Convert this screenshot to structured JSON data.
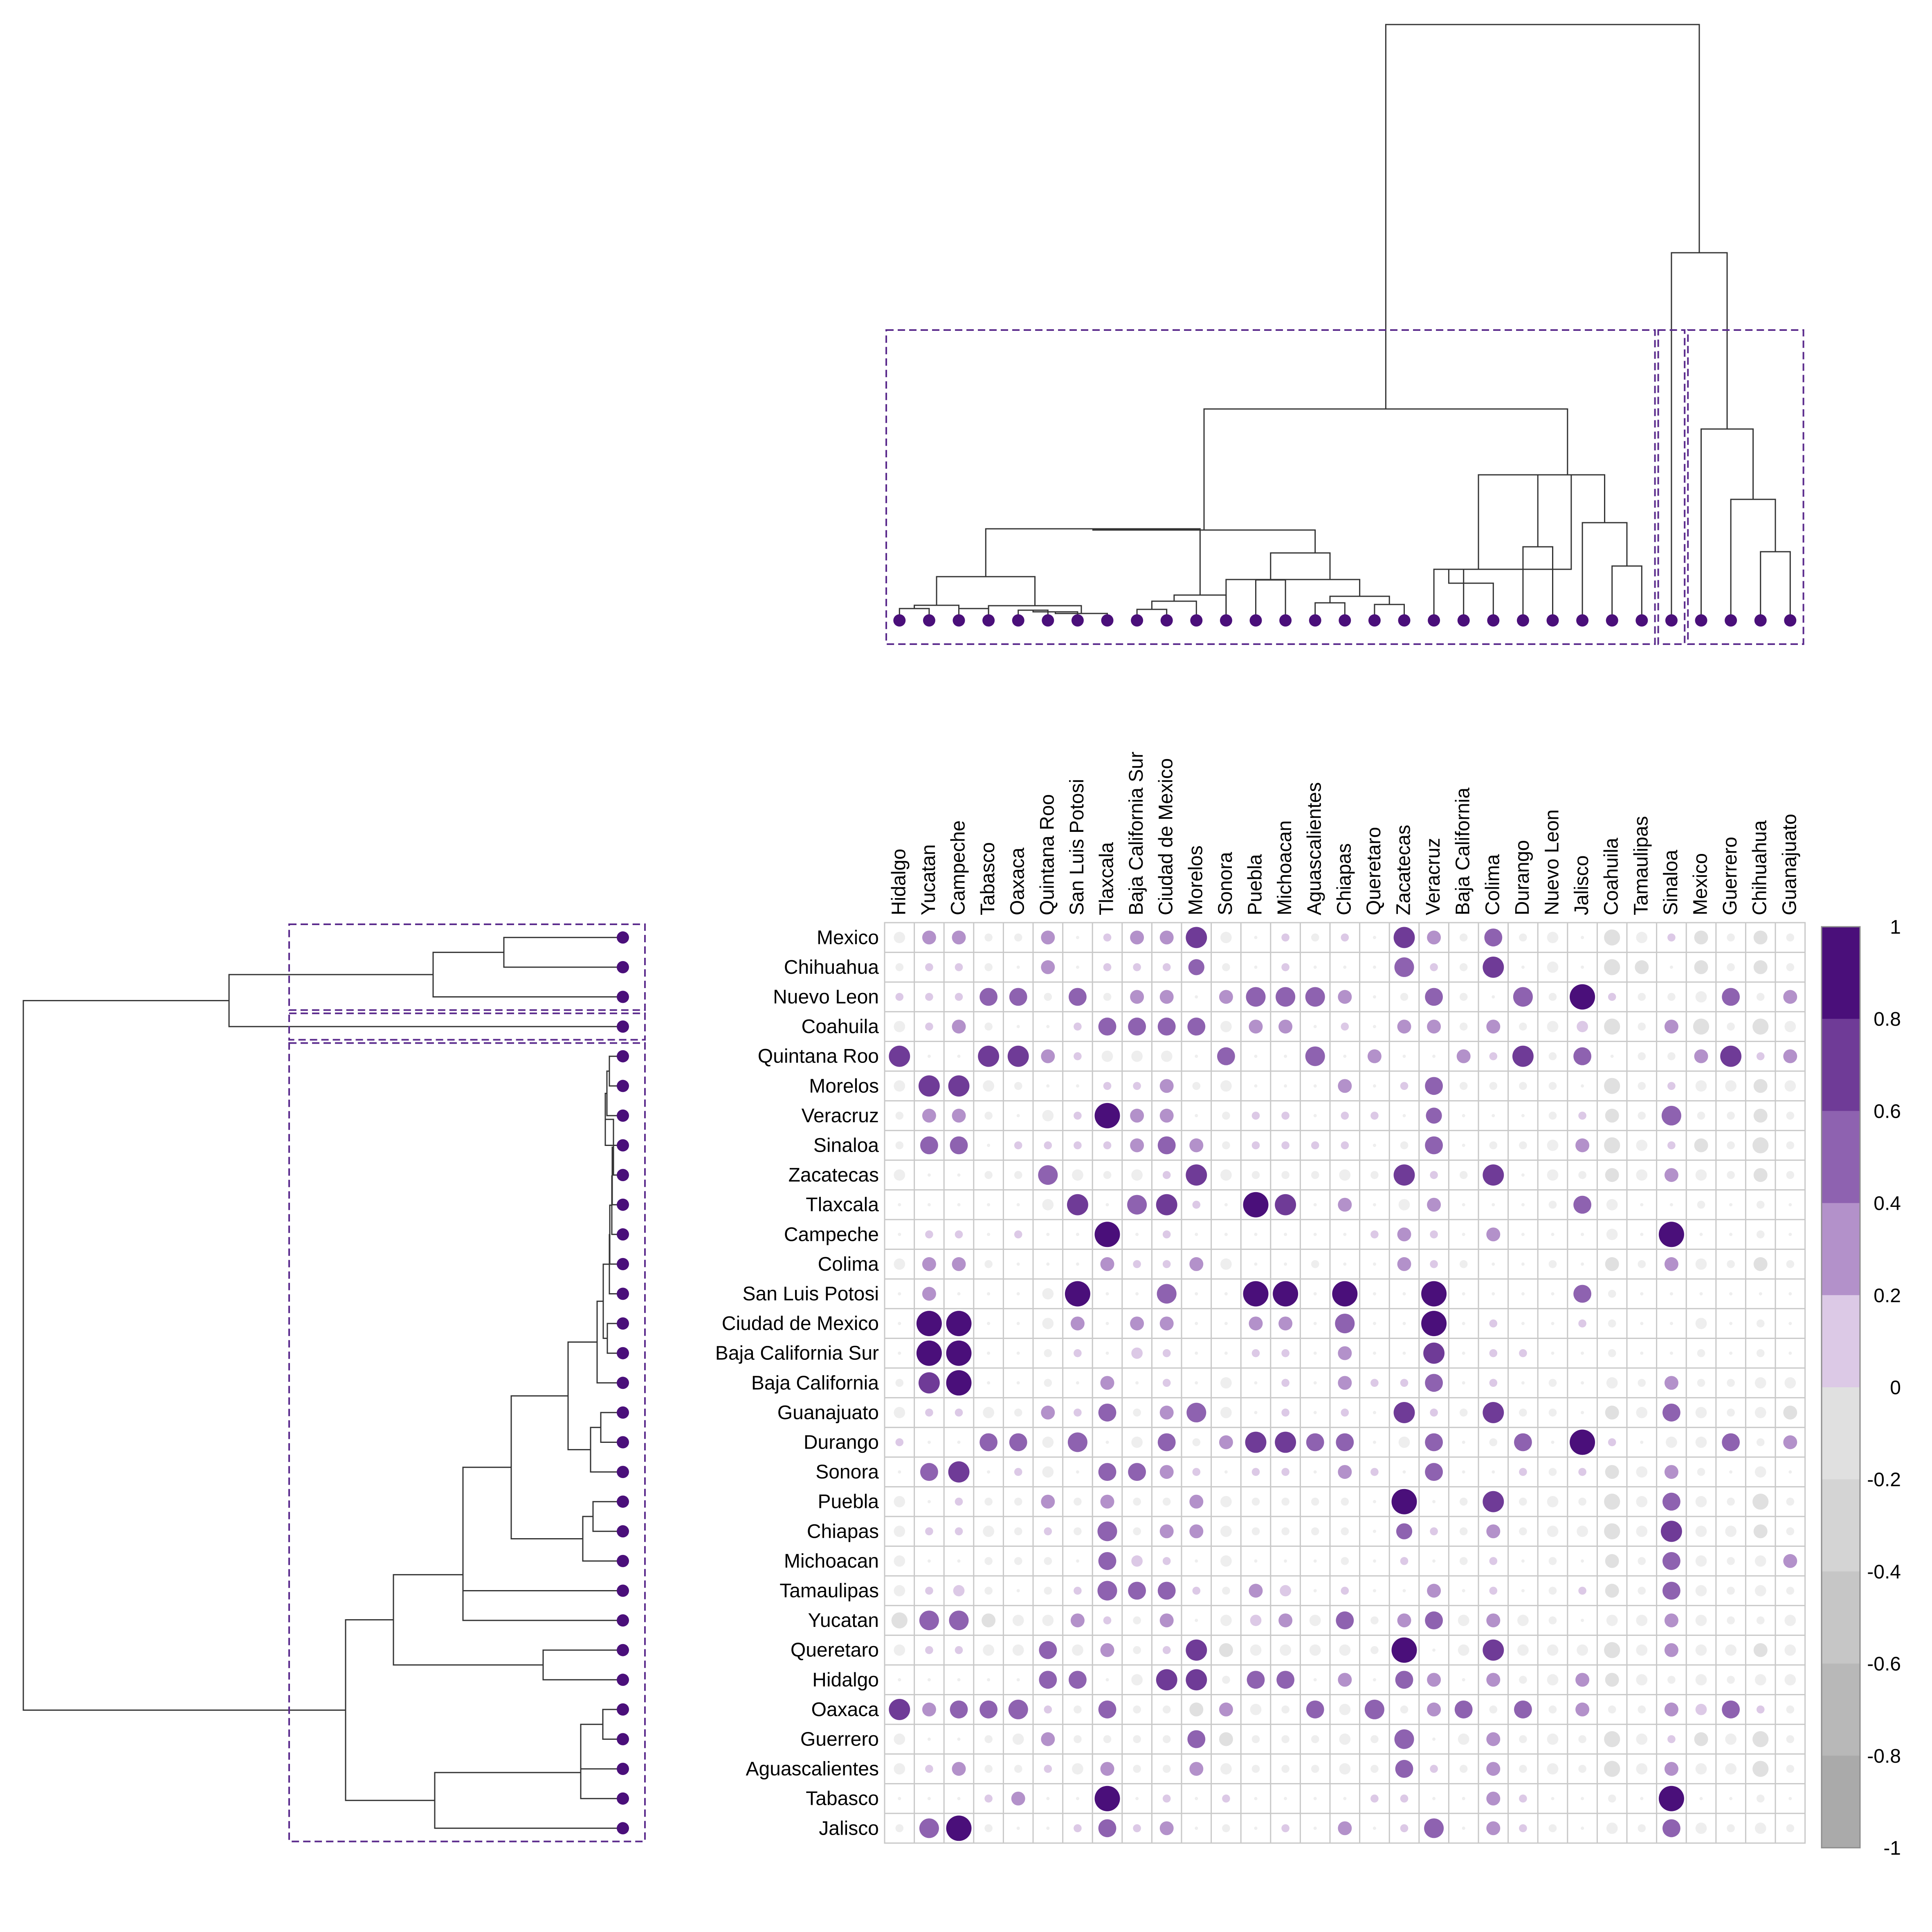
{
  "colors": {
    "dendrogram_line": "#333333",
    "cluster_box": "#5a2a8c",
    "leaf_dot": "#4a0f7a",
    "grid": "#c8c8c8",
    "border": "#8c8c8c"
  },
  "chart_data": {
    "type": "heatmap",
    "subtype": "bubble correlation matrix with dendrograms",
    "columns": [
      "Hidalgo",
      "Yucatan",
      "Campeche",
      "Tabasco",
      "Oaxaca",
      "Quintana Roo",
      "San Luis Potosi",
      "Tlaxcala",
      "Baja California Sur",
      "Ciudad de Mexico",
      "Morelos",
      "Sonora",
      "Puebla",
      "Michoacan",
      "Aguascalientes",
      "Chiapas",
      "Queretaro",
      "Zacatecas",
      "Veracruz",
      "Baja California",
      "Colima",
      "Durango",
      "Nuevo Leon",
      "Jalisco",
      "Coahuila",
      "Tamaulipas",
      "Sinaloa",
      "Mexico",
      "Guerrero",
      "Chihuahua",
      "Guanajuato"
    ],
    "rows": [
      "Mexico",
      "Chihuahua",
      "Nuevo Leon",
      "Coahuila",
      "Quintana Roo",
      "Morelos",
      "Veracruz",
      "Sinaloa",
      "Zacatecas",
      "Tlaxcala",
      "Campeche",
      "Colima",
      "San Luis Potosi",
      "Ciudad de Mexico",
      "Baja California Sur",
      "Baja California",
      "Guanajuato",
      "Durango",
      "Sonora",
      "Puebla",
      "Chiapas",
      "Michoacan",
      "Tamaulipas",
      "Yucatan",
      "Queretaro",
      "Hidalgo",
      "Oaxaca",
      "Guerrero",
      "Aguascalientes",
      "Tabasco",
      "Jalisco"
    ],
    "values": [
      [
        -0.2,
        0.3,
        0.3,
        -0.1,
        -0.1,
        0.3,
        0,
        0.1,
        0.3,
        0.3,
        0.7,
        -0.2,
        0,
        0.1,
        -0.1,
        0.1,
        0,
        0.7,
        0.3,
        -0.1,
        0.5,
        -0.1,
        -0.2,
        0,
        -0.4,
        -0.2,
        0.1,
        -0.3,
        -0.1,
        -0.3,
        -0.1
      ],
      [
        -0.1,
        0.1,
        0.1,
        -0.1,
        0,
        0.3,
        0,
        0.1,
        0.1,
        0.1,
        0.4,
        -0.1,
        0,
        0.1,
        0,
        0,
        0,
        0.6,
        0.1,
        -0.1,
        0.7,
        0,
        -0.2,
        0,
        -0.4,
        -0.3,
        0,
        -0.3,
        -0.1,
        -0.3,
        -0.1
      ],
      [
        0.1,
        0.1,
        0.1,
        0.5,
        0.5,
        -0.1,
        0.5,
        -0.1,
        0.3,
        0.3,
        0,
        0.3,
        0.6,
        0.6,
        0.6,
        0.3,
        0,
        -0.1,
        0.5,
        -0.1,
        0,
        0.6,
        -0.1,
        1,
        0.1,
        -0.1,
        -0.1,
        -0.2,
        0.5,
        -0.1,
        0.3
      ],
      [
        -0.2,
        0.1,
        0.3,
        -0.1,
        0,
        0,
        0.1,
        0.5,
        0.5,
        0.5,
        0.5,
        -0.2,
        0.3,
        0.3,
        0,
        0.1,
        0,
        0.3,
        0.3,
        -0.1,
        0.3,
        -0.1,
        -0.2,
        0.2,
        -0.4,
        -0.1,
        0.3,
        -0.4,
        -0.1,
        -0.4,
        -0.2
      ],
      [
        0.7,
        0,
        0,
        0.7,
        0.7,
        0.3,
        0.1,
        -0.2,
        -0.2,
        -0.2,
        0,
        0.5,
        0,
        0,
        0.6,
        0,
        0.3,
        0,
        0,
        0.3,
        0.1,
        0.7,
        -0.1,
        0.5,
        0,
        -0.1,
        -0.1,
        0.3,
        0.7,
        0.1,
        0.3
      ],
      [
        -0.2,
        0.7,
        0.7,
        -0.2,
        -0.1,
        0,
        0,
        0.1,
        0.1,
        0.3,
        -0.1,
        -0.2,
        0,
        0,
        0,
        0.3,
        0,
        0.1,
        0.5,
        -0.1,
        -0.1,
        -0.1,
        -0.1,
        0,
        -0.4,
        -0.1,
        0.1,
        -0.2,
        -0.2,
        -0.3,
        -0.2
      ],
      [
        -0.1,
        0.3,
        0.3,
        -0.1,
        0,
        -0.2,
        0.1,
        1,
        0.3,
        0.3,
        0,
        -0.1,
        0.1,
        0.1,
        0,
        0.1,
        0.1,
        0,
        0.4,
        0,
        0,
        0,
        -0.1,
        0.1,
        -0.3,
        -0.1,
        0.6,
        -0.1,
        -0.1,
        -0.3,
        -0.1
      ],
      [
        -0.1,
        0.5,
        0.5,
        0,
        0.1,
        0.1,
        0.1,
        0.1,
        0.3,
        0.5,
        0.3,
        -0.1,
        0.1,
        0.1,
        0.1,
        0.1,
        0,
        -0.1,
        0.5,
        0,
        -0.1,
        -0.1,
        -0.2,
        0.3,
        -0.4,
        -0.2,
        0.1,
        -0.3,
        -0.1,
        -0.4,
        -0.1
      ],
      [
        -0.2,
        0,
        0,
        -0.1,
        -0.1,
        0.6,
        -0.2,
        -0.1,
        -0.2,
        0.1,
        0.7,
        -0.2,
        -0.1,
        -0.1,
        -0.1,
        -0.2,
        -0.1,
        0.7,
        0.1,
        -0.1,
        0.7,
        0,
        -0.2,
        -0.1,
        -0.3,
        -0.2,
        0.3,
        -0.2,
        -0.1,
        -0.3,
        -0.1
      ],
      [
        0,
        0,
        0,
        0,
        0,
        -0.2,
        0.7,
        0,
        0.6,
        0.7,
        0.1,
        0,
        1,
        0.7,
        0,
        0.3,
        0,
        -0.2,
        0.3,
        0,
        0,
        0,
        -0.1,
        0.5,
        -0.2,
        0,
        0,
        -0.1,
        0,
        -0.1,
        0
      ],
      [
        0,
        0.1,
        0.1,
        0,
        0.1,
        0,
        0,
        1,
        0,
        0.1,
        0,
        0,
        0,
        0,
        0,
        0,
        0.1,
        0.3,
        0.1,
        0,
        0.3,
        0,
        0,
        0,
        -0.2,
        0,
        1,
        0,
        0,
        -0.1,
        0
      ],
      [
        -0.2,
        0.3,
        0.3,
        -0.1,
        0,
        0,
        0,
        0.3,
        0.1,
        0.1,
        0.3,
        -0.2,
        0,
        0,
        -0.1,
        0,
        0,
        0.3,
        0.1,
        -0.1,
        0,
        0,
        -0.1,
        0,
        -0.3,
        -0.1,
        0.3,
        -0.2,
        -0.1,
        -0.3,
        -0.1
      ],
      [
        0,
        0.3,
        0,
        0,
        0,
        -0.2,
        1,
        0,
        0,
        0.6,
        0,
        0,
        1,
        1,
        0,
        1,
        0,
        0,
        1,
        0,
        0,
        0,
        0,
        0.5,
        -0.1,
        0,
        0,
        0,
        0,
        0,
        0
      ],
      [
        0,
        1,
        1,
        0,
        0,
        -0.2,
        0.3,
        0,
        0.3,
        0.3,
        0,
        0,
        0.3,
        0.3,
        0,
        0.6,
        0,
        0,
        1,
        0,
        0.1,
        0,
        0,
        0.1,
        -0.1,
        0,
        0,
        -0.2,
        0,
        -0.1,
        0
      ],
      [
        0,
        1,
        1,
        0,
        0,
        -0.1,
        0.1,
        0,
        0.2,
        0.1,
        0,
        0,
        0.1,
        0.1,
        0,
        0.3,
        0,
        0,
        0.7,
        0,
        0.1,
        0.1,
        0,
        0,
        -0.1,
        0,
        0,
        -0.1,
        0,
        -0.1,
        0
      ],
      [
        -0.1,
        0.7,
        1,
        0,
        0,
        -0.1,
        0,
        0.3,
        0,
        0.1,
        0,
        -0.2,
        0,
        0.1,
        0,
        0.3,
        0.1,
        0.1,
        0.5,
        0,
        0.1,
        0,
        -0.1,
        0,
        -0.2,
        -0.1,
        0.3,
        -0.1,
        -0.1,
        -0.2,
        -0.2
      ],
      [
        -0.2,
        0.1,
        0.1,
        -0.2,
        -0.1,
        0.3,
        0.1,
        0.5,
        -0.1,
        0.3,
        0.6,
        -0.2,
        0,
        0.1,
        0,
        0.1,
        0,
        0.7,
        0.1,
        -0.1,
        0.7,
        -0.1,
        -0.1,
        0,
        -0.3,
        -0.2,
        0.5,
        -0.2,
        -0.1,
        -0.2,
        -0.3
      ],
      [
        0.1,
        0,
        0,
        0.5,
        0.5,
        -0.2,
        0.6,
        0,
        -0.2,
        0.5,
        -0.1,
        0.3,
        0.7,
        0.7,
        0.5,
        0.5,
        0,
        -0.2,
        0.5,
        0,
        -0.1,
        0.5,
        0,
        1,
        0.1,
        0,
        -0.2,
        -0.2,
        0.5,
        -0.1,
        0.3
      ],
      [
        0,
        0.5,
        0.7,
        0,
        0.1,
        -0.2,
        0,
        0.5,
        0.5,
        0.3,
        0.1,
        0,
        0.1,
        0.1,
        0,
        0.3,
        0.1,
        0,
        0.5,
        0,
        0,
        0.1,
        -0.1,
        0.1,
        -0.3,
        -0.2,
        0.3,
        -0.1,
        0,
        -0.2,
        0
      ],
      [
        -0.2,
        0,
        0.1,
        -0.1,
        -0.1,
        0.3,
        -0.1,
        0.3,
        -0.1,
        -0.1,
        0.3,
        -0.2,
        -0.1,
        -0.1,
        -0.1,
        -0.1,
        0,
        1,
        0,
        -0.1,
        0.7,
        -0.1,
        -0.2,
        -0.1,
        -0.4,
        -0.2,
        0.5,
        -0.2,
        -0.1,
        -0.4,
        -0.1
      ],
      [
        -0.2,
        0.1,
        0.1,
        -0.2,
        -0.1,
        0.1,
        -0.1,
        0.6,
        -0.1,
        0.3,
        0.3,
        -0.2,
        -0.1,
        -0.1,
        -0.1,
        -0.1,
        0,
        0.4,
        0.1,
        -0.1,
        0.3,
        -0.1,
        -0.2,
        -0.2,
        -0.4,
        -0.2,
        0.7,
        -0.2,
        -0.2,
        -0.3,
        -0.1
      ],
      [
        -0.2,
        0,
        0,
        -0.1,
        -0.1,
        -0.1,
        0,
        0.5,
        0.2,
        0.1,
        0,
        -0.2,
        0,
        0,
        0,
        -0.1,
        0,
        0.1,
        0,
        -0.1,
        0.1,
        0,
        -0.1,
        0,
        -0.3,
        -0.1,
        0.5,
        -0.2,
        -0.1,
        -0.2,
        0.3
      ],
      [
        -0.2,
        0.1,
        0.2,
        -0.1,
        0,
        -0.1,
        0.1,
        0.6,
        0.5,
        0.5,
        0.1,
        -0.1,
        0.3,
        0.2,
        0,
        0.1,
        0,
        0,
        0.3,
        0,
        0.1,
        0,
        -0.1,
        0.1,
        -0.3,
        -0.1,
        0.5,
        -0.2,
        -0.1,
        -0.2,
        -0.1
      ],
      [
        -0.4,
        0.6,
        0.6,
        -0.3,
        -0.2,
        -0.2,
        0.3,
        0.1,
        -0.1,
        0.3,
        0,
        -0.2,
        0.2,
        0.3,
        -0.2,
        0.5,
        -0.1,
        0.3,
        0.5,
        -0.2,
        0.3,
        -0.2,
        -0.1,
        0,
        -0.2,
        -0.2,
        0.3,
        -0.2,
        -0.1,
        -0.1,
        -0.2
      ],
      [
        -0.2,
        0.1,
        0.1,
        -0.2,
        -0.2,
        0.5,
        -0.2,
        0.3,
        -0.1,
        0.1,
        0.7,
        -0.3,
        -0.2,
        -0.2,
        -0.2,
        -0.2,
        -0.1,
        1,
        0,
        -0.2,
        0.7,
        -0.2,
        -0.2,
        -0.2,
        -0.4,
        -0.2,
        0.3,
        -0.2,
        -0.2,
        -0.3,
        -0.2
      ],
      [
        0,
        0,
        0,
        0,
        0,
        0.5,
        0.5,
        0,
        -0.2,
        0.7,
        0.7,
        -0.1,
        0.5,
        0.5,
        0,
        0.3,
        0,
        0.5,
        0.3,
        0,
        0.3,
        -0.1,
        -0.2,
        0.3,
        -0.3,
        -0.2,
        -0.1,
        -0.2,
        -0.1,
        -0.2,
        -0.2
      ],
      [
        0.7,
        0.3,
        0.5,
        0.5,
        0.6,
        0.1,
        -0.1,
        0.5,
        -0.1,
        -0.1,
        -0.3,
        0.3,
        -0.2,
        -0.1,
        0.5,
        -0.2,
        0.6,
        -0.1,
        0.3,
        0.5,
        -0.1,
        0.5,
        -0.1,
        0.3,
        -0.1,
        -0.1,
        0.3,
        0.2,
        0.5,
        0.1,
        -0.1
      ],
      [
        -0.2,
        0,
        0,
        -0.1,
        -0.2,
        0.3,
        -0.1,
        -0.1,
        -0.1,
        -0.1,
        0.5,
        -0.3,
        -0.1,
        -0.1,
        -0.1,
        -0.2,
        -0.1,
        0.6,
        0,
        -0.2,
        0.3,
        -0.1,
        -0.2,
        -0.1,
        -0.4,
        -0.2,
        0.1,
        -0.3,
        -0.2,
        -0.4,
        -0.1
      ],
      [
        -0.2,
        0.1,
        0.3,
        -0.1,
        -0.1,
        0.1,
        -0.2,
        0.3,
        -0.1,
        -0.1,
        0.3,
        -0.2,
        -0.1,
        -0.1,
        -0.1,
        -0.2,
        -0.1,
        0.5,
        0.1,
        -0.1,
        0.3,
        -0.1,
        -0.2,
        -0.1,
        -0.4,
        -0.2,
        0.3,
        -0.2,
        -0.2,
        -0.4,
        -0.1
      ],
      [
        0,
        0,
        0,
        0.1,
        0.3,
        0,
        0,
        1,
        0,
        0.1,
        0,
        0.1,
        0,
        0,
        0,
        0,
        0.1,
        0.1,
        0,
        0,
        0.3,
        0.1,
        0,
        0,
        -0.1,
        0,
        1,
        0,
        0,
        -0.1,
        0
      ],
      [
        -0.1,
        0.6,
        1,
        -0.1,
        0,
        0,
        0.1,
        0.5,
        0.1,
        0.3,
        0,
        -0.1,
        0,
        0.1,
        0,
        0.3,
        0,
        0.1,
        0.6,
        0,
        0.3,
        0.1,
        -0.1,
        0,
        -0.2,
        -0.1,
        0.5,
        -0.2,
        -0.1,
        -0.2,
        -0.1
      ]
    ],
    "color_scale": {
      "min": -1,
      "max": 1,
      "step": 0.2,
      "ticks": [
        "1",
        "0.8",
        "0.6",
        "0.4",
        "0.2",
        "0",
        "-0.2",
        "-0.4",
        "-0.6",
        "-0.8",
        "-1"
      ],
      "colors": [
        "#4a0f7a",
        "#6f3b97",
        "#8e62b0",
        "#b391ca",
        "#dcc9e6",
        "#eeeeee",
        "#e0e0e0",
        "#d4d4d4",
        "#c6c6c6",
        "#b8b8b8",
        "#aaaaaa"
      ],
      "position": "right"
    },
    "top_dendrogram_clusters": [
      [
        0,
        25
      ],
      [
        26,
        26
      ],
      [
        27,
        30
      ]
    ],
    "left_dendrogram_clusters": [
      [
        0,
        2
      ],
      [
        3,
        3
      ],
      [
        4,
        30
      ]
    ]
  }
}
